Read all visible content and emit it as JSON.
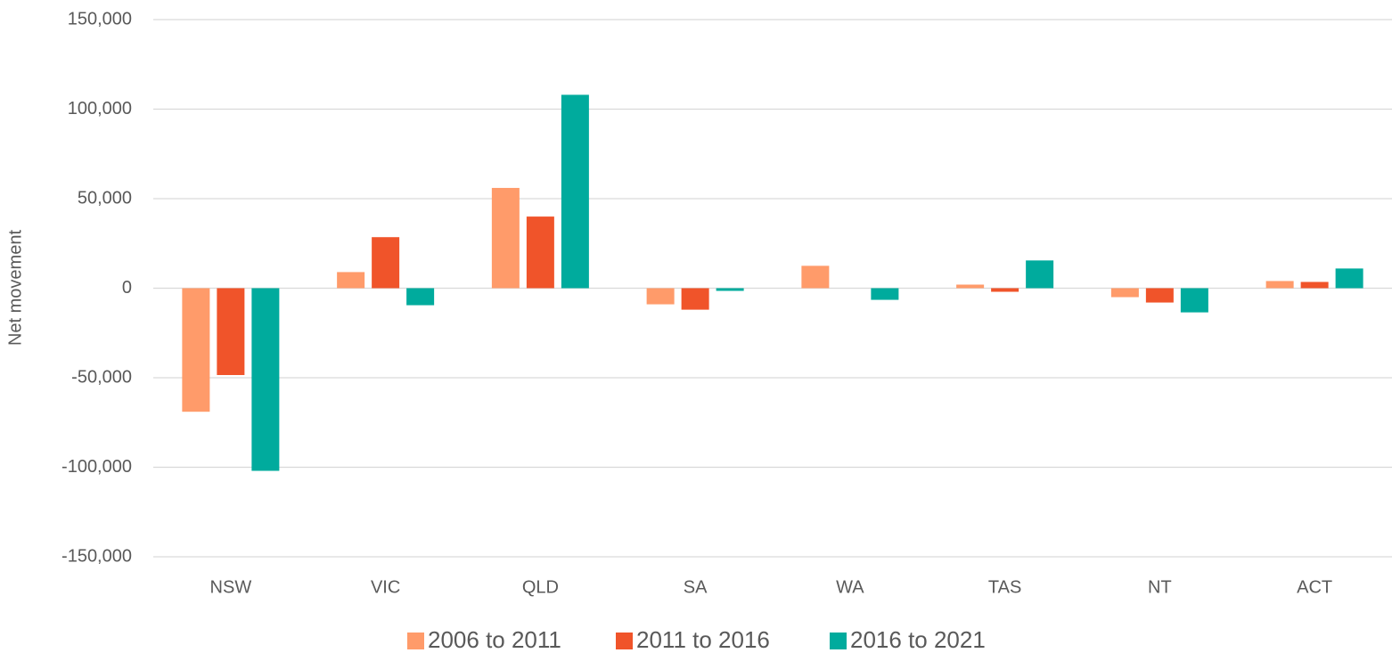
{
  "chart_data": {
    "type": "bar",
    "y_label": "Net movement",
    "categories": [
      "NSW",
      "VIC",
      "QLD",
      "SA",
      "WA",
      "TAS",
      "NT",
      "ACT"
    ],
    "series": [
      {
        "name": "2006 to 2011",
        "color": "#ff9b6a",
        "values": [
          -69000,
          9000,
          56000,
          -9000,
          12500,
          2000,
          -5000,
          4000
        ]
      },
      {
        "name": "2011 to 2016",
        "color": "#f0542a",
        "values": [
          -48500,
          28500,
          40000,
          -12000,
          0,
          -2000,
          -8000,
          3500
        ]
      },
      {
        "name": "2016 to 2021",
        "color": "#00ab9d",
        "values": [
          -102000,
          -9500,
          108000,
          -1500,
          -6500,
          15500,
          -13500,
          11000
        ]
      }
    ],
    "ylim": [
      -150000,
      150000
    ],
    "yticks": [
      {
        "value": -150000,
        "label": "-150,000"
      },
      {
        "value": -100000,
        "label": "-100,000"
      },
      {
        "value": -50000,
        "label": "-50,000"
      },
      0,
      {
        "value": 50000,
        "label": "50,000"
      },
      {
        "value": 100000,
        "label": "100,000"
      },
      {
        "value": 150000,
        "label": "150,000"
      }
    ],
    "grid": true,
    "legend": "bottom"
  }
}
